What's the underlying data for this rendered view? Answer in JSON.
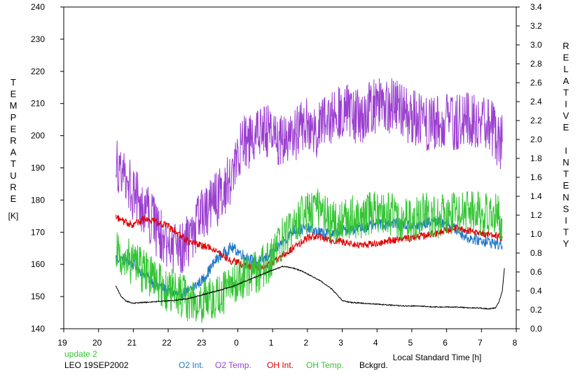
{
  "chart_data": {
    "type": "line",
    "left_axis": {
      "label": "TEMPERATURE",
      "unit": "[K]",
      "ticks": [
        "140",
        "150",
        "160",
        "170",
        "180",
        "190",
        "200",
        "210",
        "220",
        "230",
        "240"
      ],
      "range": [
        140,
        240
      ]
    },
    "right_axis": {
      "label": "RELATIVE INTENSITY",
      "ticks": [
        "0.0",
        "0.2",
        "0.4",
        "0.6",
        "0.8",
        "1.0",
        "1.2",
        "1.4",
        "1.6",
        "1.8",
        "2.0",
        "2.2",
        "2.4",
        "2.6",
        "2.8",
        "3.0",
        "3.2",
        "3.4"
      ],
      "range": [
        0,
        3.4
      ]
    },
    "x_axis": {
      "label": "Local Standard Time [h]",
      "ticks": [
        "19",
        "20",
        "21",
        "22",
        "23",
        "0",
        "1",
        "2",
        "3",
        "4",
        "5",
        "6",
        "7",
        "8"
      ],
      "range": [
        19,
        32
      ]
    },
    "notes": {
      "update": "update 2",
      "station": "LEO 19SEP2002"
    },
    "series": [
      {
        "name": "O2 Int.",
        "axis": "right",
        "color": "#1f77c8",
        "noise": 0.06,
        "x": [
          20.5,
          20.8,
          21.0,
          21.3,
          21.6,
          22.0,
          22.3,
          22.6,
          23.0,
          23.4,
          23.8,
          24.0,
          24.3,
          24.6,
          25.0,
          25.3,
          25.6,
          26.0,
          26.3,
          26.6,
          27.0,
          27.5,
          28.0,
          28.5,
          29.0,
          29.3,
          29.6,
          30.0,
          30.3,
          30.6,
          30.9,
          31.2,
          31.4,
          31.6
        ],
        "y": [
          0.75,
          0.72,
          0.68,
          0.58,
          0.48,
          0.4,
          0.36,
          0.4,
          0.52,
          0.74,
          0.86,
          0.82,
          0.74,
          0.7,
          0.8,
          0.92,
          1.04,
          1.06,
          1.02,
          1.0,
          1.04,
          1.06,
          1.1,
          1.12,
          1.08,
          1.1,
          1.14,
          1.12,
          1.04,
          0.96,
          0.94,
          0.92,
          0.9,
          0.88
        ]
      },
      {
        "name": "O2 Temp.",
        "axis": "left",
        "color": "#9b3fd0",
        "noise": 9,
        "x": [
          20.5,
          20.8,
          21.0,
          21.3,
          21.6,
          22.0,
          22.3,
          22.6,
          23.0,
          23.4,
          23.8,
          24.0,
          24.3,
          24.6,
          25.0,
          25.3,
          25.6,
          26.0,
          26.3,
          26.6,
          27.0,
          27.5,
          28.0,
          28.5,
          29.0,
          29.3,
          29.6,
          30.0,
          30.3,
          30.6,
          30.9,
          31.2,
          31.4,
          31.6
        ],
        "y": [
          192,
          186,
          182,
          178,
          172,
          166,
          165,
          168,
          175,
          180,
          186,
          196,
          198,
          202,
          200,
          197,
          200,
          204,
          202,
          206,
          208,
          206,
          210,
          209,
          206,
          204,
          204,
          205,
          204,
          206,
          203,
          204,
          200,
          198
        ]
      },
      {
        "name": "OH Int.",
        "axis": "right",
        "color": "#dd0000",
        "noise": 0.04,
        "x": [
          20.5,
          20.8,
          21.0,
          21.3,
          21.6,
          22.0,
          22.3,
          22.6,
          23.0,
          23.4,
          23.8,
          24.0,
          24.3,
          24.6,
          25.0,
          25.3,
          25.6,
          26.0,
          26.3,
          26.6,
          27.0,
          27.5,
          28.0,
          28.5,
          29.0,
          29.3,
          29.6,
          30.0,
          30.3,
          30.6,
          30.9,
          31.2,
          31.4,
          31.6
        ],
        "y": [
          1.18,
          1.12,
          1.1,
          1.16,
          1.14,
          1.08,
          1.0,
          0.92,
          0.88,
          0.82,
          0.72,
          0.7,
          0.66,
          0.64,
          0.7,
          0.78,
          0.86,
          0.96,
          0.98,
          0.94,
          0.92,
          0.88,
          0.9,
          0.94,
          0.96,
          0.98,
          1.0,
          1.04,
          1.06,
          1.04,
          1.02,
          1.0,
          0.98,
          0.96
        ]
      },
      {
        "name": "OH Temp.",
        "axis": "left",
        "color": "#33c433",
        "noise": 7,
        "x": [
          20.5,
          20.8,
          21.0,
          21.3,
          21.6,
          22.0,
          22.3,
          22.6,
          23.0,
          23.4,
          23.8,
          24.0,
          24.3,
          24.6,
          25.0,
          25.3,
          25.6,
          26.0,
          26.3,
          26.6,
          27.0,
          27.5,
          28.0,
          28.5,
          29.0,
          29.3,
          29.6,
          30.0,
          30.3,
          30.6,
          30.9,
          31.2,
          31.4,
          31.6
        ],
        "y": [
          163,
          162,
          160,
          158,
          155,
          152,
          151,
          149,
          148,
          150,
          152,
          155,
          157,
          158,
          162,
          168,
          172,
          176,
          177,
          174,
          174,
          175,
          176,
          175,
          173,
          176,
          175,
          175,
          176,
          176,
          176,
          176,
          175,
          174
        ]
      },
      {
        "name": "Bckgrd.",
        "axis": "right",
        "color": "#000000",
        "noise": 0.005,
        "x": [
          20.5,
          20.65,
          20.8,
          21.0,
          21.4,
          21.8,
          22.2,
          22.6,
          23.0,
          23.4,
          23.8,
          24.2,
          24.6,
          25.0,
          25.3,
          25.6,
          25.9,
          26.1,
          26.4,
          26.7,
          27.0,
          27.2,
          27.6,
          28.0,
          28.4,
          28.8,
          29.2,
          29.6,
          30.0,
          30.3,
          30.6,
          30.9,
          31.2,
          31.4,
          31.5,
          31.6,
          31.66
        ],
        "y": [
          0.45,
          0.34,
          0.29,
          0.27,
          0.28,
          0.29,
          0.3,
          0.32,
          0.36,
          0.4,
          0.44,
          0.5,
          0.56,
          0.62,
          0.66,
          0.64,
          0.6,
          0.56,
          0.5,
          0.42,
          0.3,
          0.28,
          0.27,
          0.26,
          0.25,
          0.24,
          0.24,
          0.23,
          0.23,
          0.23,
          0.22,
          0.22,
          0.21,
          0.22,
          0.28,
          0.4,
          0.64
        ]
      }
    ]
  }
}
